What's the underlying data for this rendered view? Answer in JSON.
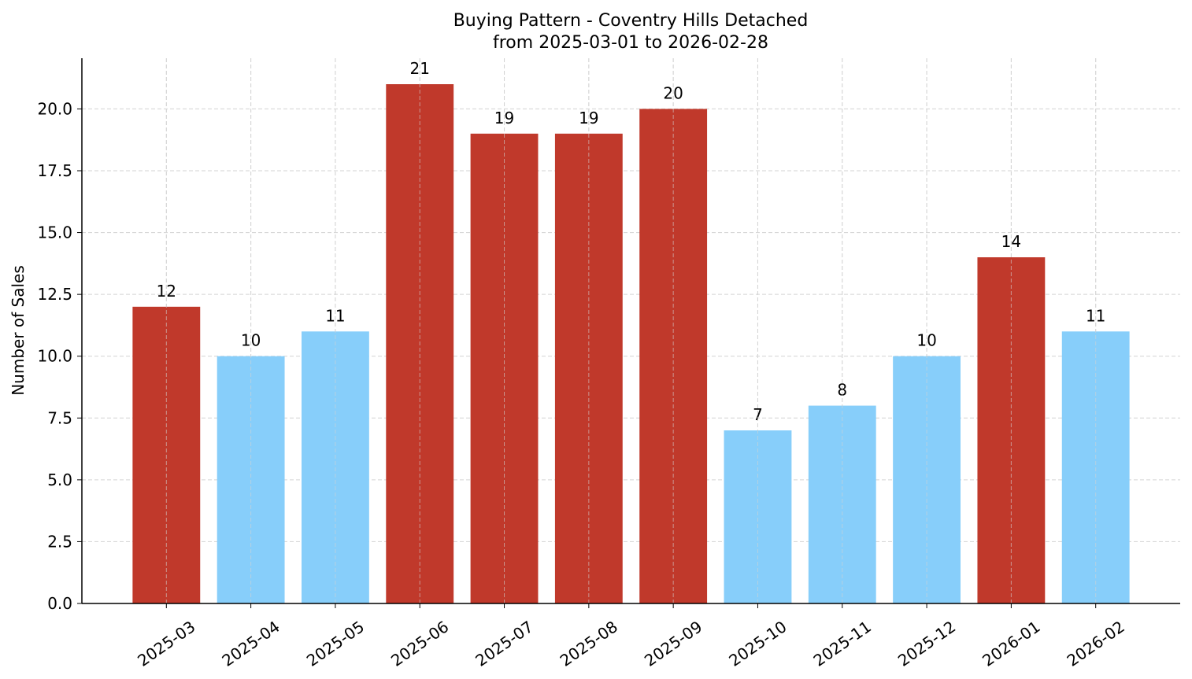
{
  "chart_data": {
    "type": "bar",
    "title": "Buying Pattern - Coventry Hills Detached",
    "subtitle": "from 2025-03-01 to 2026-02-28",
    "y_label": "Number of Sales",
    "categories": [
      "2025-03",
      "2025-04",
      "2025-05",
      "2025-06",
      "2025-07",
      "2025-08",
      "2025-09",
      "2025-10",
      "2025-11",
      "2025-12",
      "2026-01",
      "2026-02"
    ],
    "values": [
      12,
      10,
      11,
      21,
      19,
      19,
      20,
      7,
      8,
      10,
      14,
      11
    ],
    "colors": [
      "#c0392b",
      "#87cefa",
      "#87cefa",
      "#c0392b",
      "#c0392b",
      "#c0392b",
      "#c0392b",
      "#87cefa",
      "#87cefa",
      "#87cefa",
      "#c0392b",
      "#87cefa"
    ],
    "ylim": [
      0,
      22.05
    ],
    "yticks": [
      {
        "value": 0,
        "label": "0.0"
      },
      2.5,
      {
        "value": 5,
        "label": "5.0"
      },
      7.5,
      {
        "value": 10,
        "label": "10.0"
      },
      12.5,
      {
        "value": 15,
        "label": "15.0"
      },
      17.5,
      {
        "value": 20,
        "label": "20.0"
      }
    ],
    "grid": true
  }
}
